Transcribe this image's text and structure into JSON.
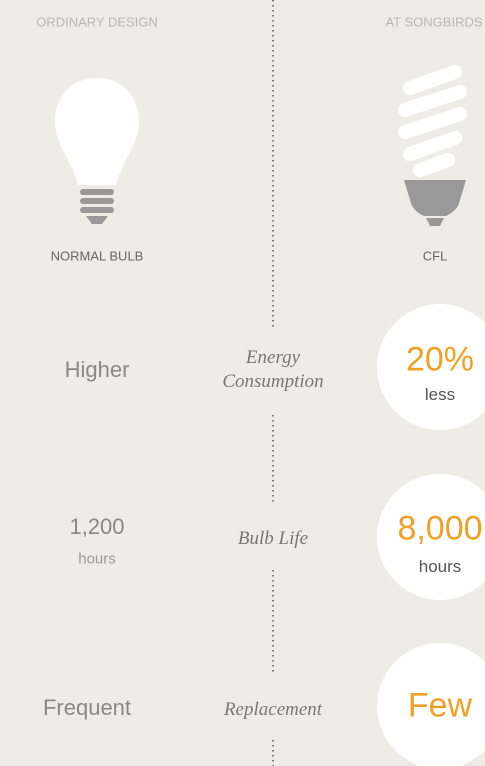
{
  "header": {
    "left": "ORDINARY DESIGN",
    "right": "AT SONGBIRDS"
  },
  "bulbs": {
    "left": "NORMAL BULB",
    "right": "CFL"
  },
  "rows": [
    {
      "ordinary": "Higher",
      "feature": "Energy Consumption",
      "songbirds": "20%",
      "songbirds_unit": "less"
    },
    {
      "ordinary": "1,200",
      "ordinary_unit": "hours",
      "feature": "Bulb Life",
      "songbirds": "8,000",
      "songbirds_unit": "hours"
    },
    {
      "ordinary": "Frequent",
      "feature": "Replacement",
      "songbirds": "Few"
    }
  ]
}
